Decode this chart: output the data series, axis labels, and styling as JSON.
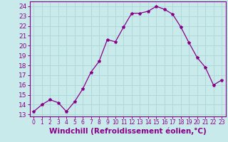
{
  "x": [
    0,
    1,
    2,
    3,
    4,
    5,
    6,
    7,
    8,
    9,
    10,
    11,
    12,
    13,
    14,
    15,
    16,
    17,
    18,
    19,
    20,
    21,
    22,
    23
  ],
  "y": [
    13.3,
    14.0,
    14.5,
    14.2,
    13.3,
    14.3,
    15.6,
    17.3,
    18.4,
    20.6,
    20.4,
    21.9,
    23.3,
    23.3,
    23.5,
    24.0,
    23.7,
    23.2,
    21.9,
    20.3,
    18.8,
    17.8,
    16.0,
    16.5
  ],
  "line_color": "#880088",
  "marker": "*",
  "marker_size": 3,
  "bg_color": "#c8eaea",
  "grid_color": "#b0d8d8",
  "xlabel": "Windchill (Refroidissement éolien,°C)",
  "ylim": [
    12.8,
    24.5
  ],
  "xlim": [
    -0.5,
    23.5
  ],
  "yticks": [
    13,
    14,
    15,
    16,
    17,
    18,
    19,
    20,
    21,
    22,
    23,
    24
  ],
  "xticks": [
    0,
    1,
    2,
    3,
    4,
    5,
    6,
    7,
    8,
    9,
    10,
    11,
    12,
    13,
    14,
    15,
    16,
    17,
    18,
    19,
    20,
    21,
    22,
    23
  ],
  "tick_color": "#880088",
  "label_color": "#880088",
  "xlabel_fontsize": 7.5,
  "ytick_fontsize": 6.5,
  "xtick_fontsize": 5.5,
  "spine_color": "#880088"
}
